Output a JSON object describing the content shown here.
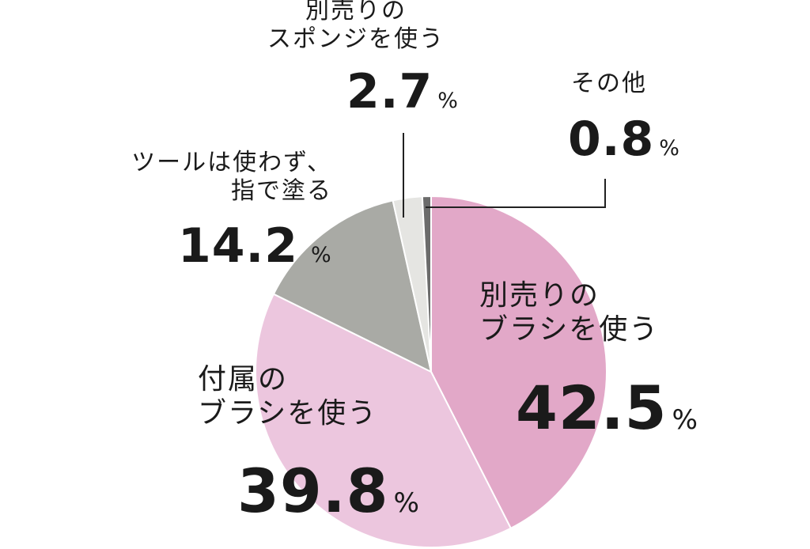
{
  "chart_data": {
    "type": "pie",
    "categories": [
      "別売りの\nブラシを使う",
      "付属の\nブラシを使う",
      "ツールは使わず、\n指で塗る",
      "別売りの\nスポンジを使う",
      "その他"
    ],
    "values": [
      42.5,
      39.8,
      14.2,
      2.7,
      0.8
    ],
    "unit": "%",
    "colors": [
      "#e2a8c8",
      "#ecc6de",
      "#a9aaa5",
      "#e5e5e2",
      "#6b6b6b"
    ]
  }
}
